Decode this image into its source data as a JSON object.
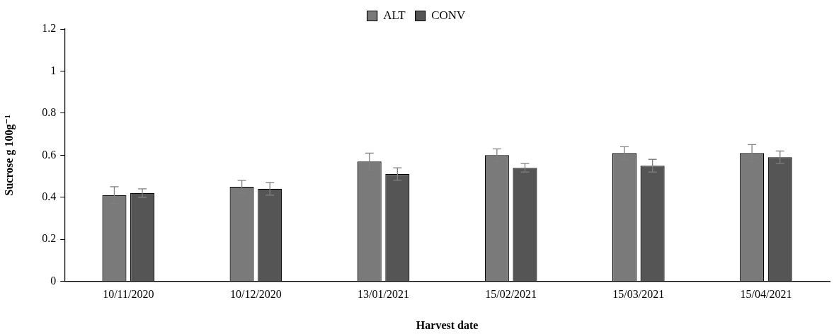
{
  "chart_data": {
    "type": "bar",
    "xlabel": "Harvest date",
    "ylabel": "Sucrose g 100g⁻¹",
    "categories": [
      "10/11/2020",
      "10/12/2020",
      "13/01/2021",
      "15/02/2021",
      "15/03/2021",
      "15/04/2021"
    ],
    "series": [
      {
        "name": "ALT",
        "color": "#7a7a7a",
        "values": [
          0.41,
          0.45,
          0.57,
          0.6,
          0.61,
          0.61
        ],
        "errors": [
          0.04,
          0.03,
          0.04,
          0.03,
          0.03,
          0.04
        ]
      },
      {
        "name": "CONV",
        "color": "#555555",
        "values": [
          0.42,
          0.44,
          0.51,
          0.54,
          0.55,
          0.59
        ],
        "errors": [
          0.02,
          0.03,
          0.03,
          0.02,
          0.03,
          0.03
        ]
      }
    ],
    "ylim": [
      0,
      1.2
    ],
    "yticks": [
      0,
      0.2,
      0.4,
      0.6,
      0.8,
      1,
      1.2
    ],
    "grid": false,
    "legend": "top"
  }
}
